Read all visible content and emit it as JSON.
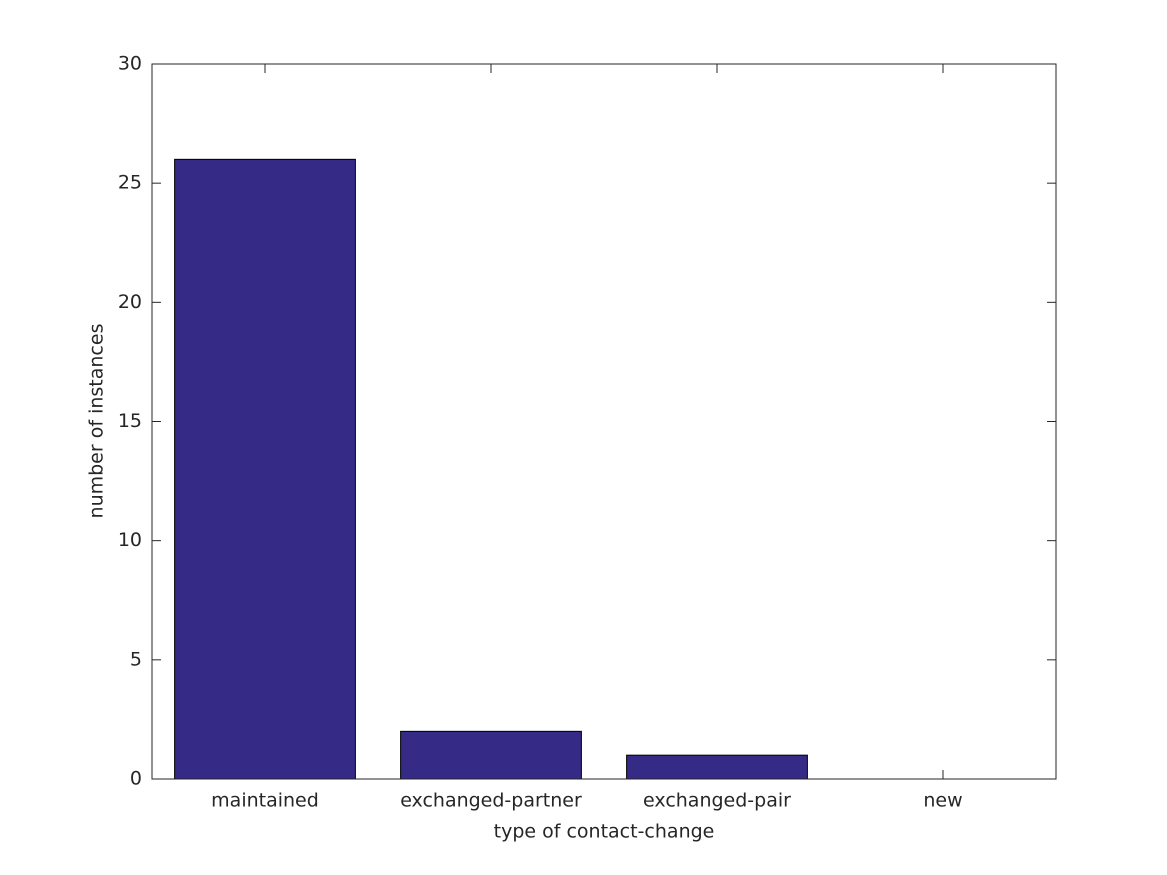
{
  "chart_data": {
    "type": "bar",
    "xlabel": "type of contact-change",
    "ylabel": "number of instances",
    "categories": [
      "maintained",
      "exchanged-partner",
      "exchanged-pair",
      "new"
    ],
    "values": [
      26,
      2,
      1,
      0
    ],
    "color": "#352a86",
    "ylim": [
      0,
      30
    ],
    "yticks": [
      0,
      5,
      10,
      15,
      20,
      25,
      30
    ],
    "grid": false
  }
}
